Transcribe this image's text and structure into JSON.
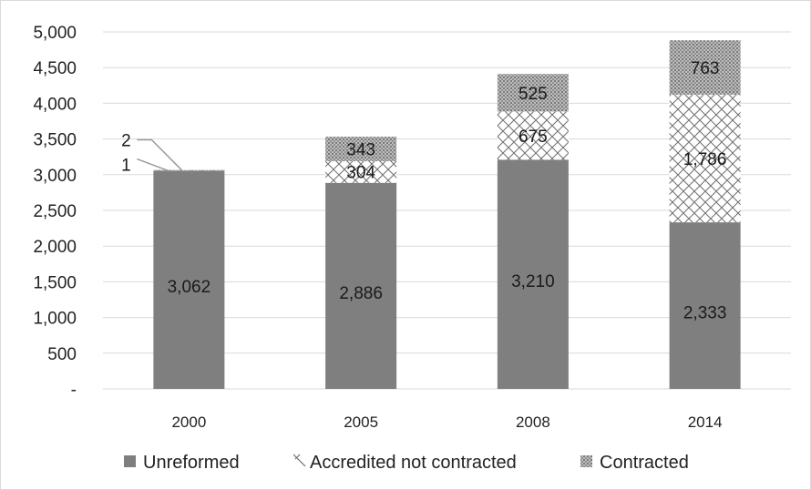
{
  "chart_data": {
    "type": "bar",
    "stacked": true,
    "title": "",
    "xlabel": "",
    "ylabel": "",
    "categories": [
      "2000",
      "2005",
      "2008",
      "2014"
    ],
    "ylim": [
      0,
      5000
    ],
    "y_ticks": [
      0,
      500,
      1000,
      1500,
      2000,
      2500,
      3000,
      3500,
      4000,
      4500,
      5000
    ],
    "y_tick_labels": [
      "-",
      "500",
      "1,000",
      "1,500",
      "2,000",
      "2,500",
      "3,000",
      "3,500",
      "4,000",
      "4,500",
      "5,000"
    ],
    "grid": true,
    "legend_position": "bottom",
    "series": [
      {
        "name": "Unreformed",
        "values": [
          3062,
          2886,
          3210,
          2333
        ],
        "labels": [
          "3,062",
          "2,886",
          "3,210",
          "2,333"
        ],
        "color": "#7f7f7f",
        "pattern": "solid"
      },
      {
        "name": "Accredited not contracted",
        "values": [
          1,
          304,
          675,
          1786
        ],
        "labels": [
          "1",
          "304",
          "675",
          "1,786"
        ],
        "color": "#7f7f7f",
        "pattern": "crosshatch"
      },
      {
        "name": "Contracted",
        "values": [
          2,
          343,
          525,
          763
        ],
        "labels": [
          "2",
          "343",
          "525",
          "763"
        ],
        "color": "#7f7f7f",
        "pattern": "dots"
      }
    ]
  }
}
